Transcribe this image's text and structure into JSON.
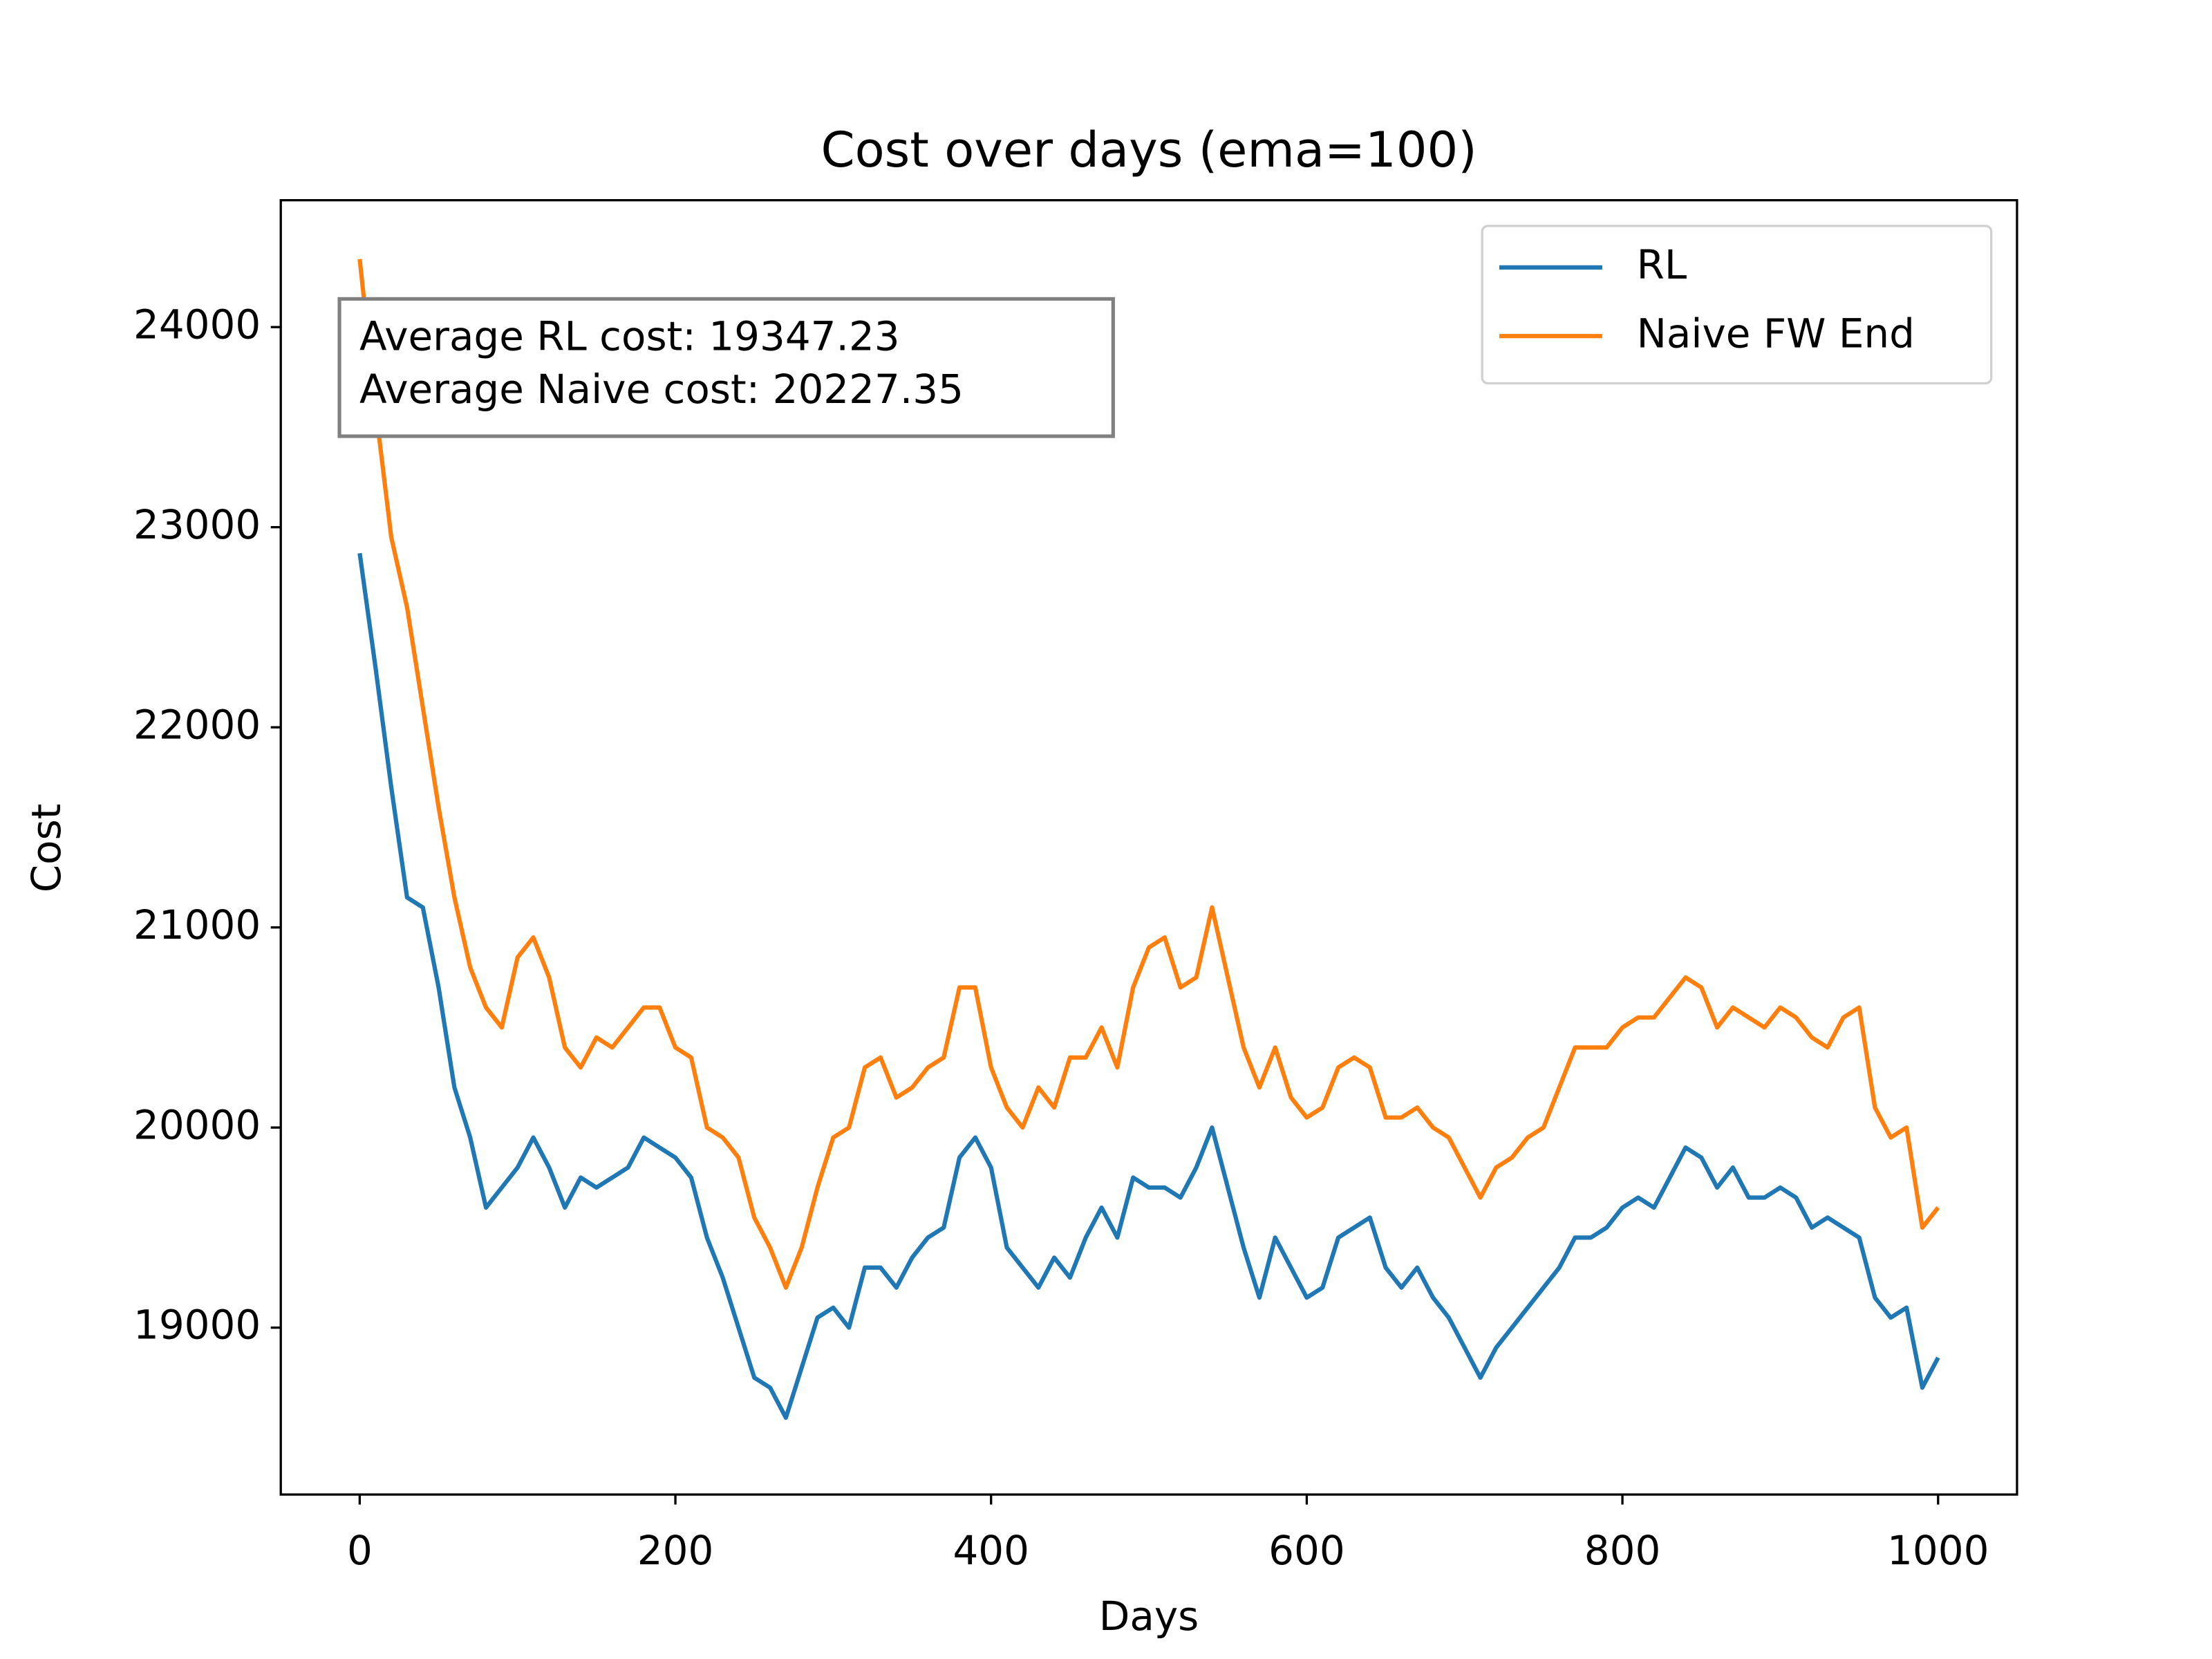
{
  "chart_data": {
    "type": "line",
    "title": "Cost over days (ema=100)",
    "x_label": "Days",
    "y_label": "Cost",
    "annotation": [
      "Average RL cost: 19347.23",
      "Average Naive cost: 20227.35"
    ],
    "legend_position": "upper right",
    "xlim": [
      -50,
      1050
    ],
    "ylim": [
      18166,
      24634
    ],
    "xticks": [
      0,
      200,
      400,
      600,
      800,
      1000
    ],
    "yticks": [
      19000,
      20000,
      21000,
      22000,
      23000,
      24000
    ],
    "x": [
      0,
      10,
      20,
      30,
      40,
      50,
      60,
      70,
      80,
      90,
      100,
      110,
      120,
      130,
      140,
      150,
      160,
      170,
      180,
      190,
      200,
      210,
      220,
      230,
      240,
      250,
      260,
      270,
      280,
      290,
      300,
      310,
      320,
      330,
      340,
      350,
      360,
      370,
      380,
      390,
      400,
      410,
      420,
      430,
      440,
      450,
      460,
      470,
      480,
      490,
      500,
      510,
      520,
      530,
      540,
      550,
      560,
      570,
      580,
      590,
      600,
      610,
      620,
      630,
      640,
      650,
      660,
      670,
      680,
      690,
      700,
      710,
      720,
      730,
      740,
      750,
      760,
      770,
      780,
      790,
      800,
      810,
      820,
      830,
      840,
      850,
      860,
      870,
      880,
      890,
      900,
      910,
      920,
      930,
      940,
      950,
      960,
      970,
      980,
      990,
      1000
    ],
    "series": [
      {
        "name": "RL",
        "color": "#1f77b4",
        "values": [
          22870,
          22300,
          21700,
          21150,
          21100,
          20700,
          20200,
          19950,
          19600,
          19700,
          19800,
          19950,
          19800,
          19600,
          19750,
          19700,
          19750,
          19800,
          19950,
          19900,
          19850,
          19750,
          19450,
          19250,
          19000,
          18750,
          18700,
          18550,
          18800,
          19050,
          19100,
          19000,
          19300,
          19300,
          19200,
          19350,
          19450,
          19500,
          19850,
          19950,
          19800,
          19400,
          19300,
          19200,
          19350,
          19250,
          19450,
          19600,
          19450,
          19750,
          19700,
          19700,
          19650,
          19800,
          20000,
          19700,
          19400,
          19150,
          19450,
          19300,
          19150,
          19200,
          19450,
          19500,
          19550,
          19300,
          19200,
          19300,
          19150,
          19050,
          18900,
          18750,
          18900,
          19000,
          19100,
          19200,
          19300,
          19450,
          19450,
          19500,
          19600,
          19650,
          19600,
          19750,
          19900,
          19850,
          19700,
          19800,
          19650,
          19650,
          19700,
          19650,
          19500,
          19550,
          19500,
          19450,
          19150,
          19050,
          19100,
          18700,
          18850
        ]
      },
      {
        "name": "Naive FW End",
        "color": "#ff7f0e",
        "values": [
          24340,
          23600,
          22950,
          22600,
          22100,
          21600,
          21150,
          20800,
          20600,
          20500,
          20850,
          20950,
          20750,
          20400,
          20300,
          20450,
          20400,
          20500,
          20600,
          20600,
          20400,
          20350,
          20000,
          19950,
          19850,
          19550,
          19400,
          19200,
          19400,
          19700,
          19950,
          20000,
          20300,
          20350,
          20150,
          20200,
          20300,
          20350,
          20700,
          20700,
          20300,
          20100,
          20000,
          20200,
          20100,
          20350,
          20350,
          20500,
          20300,
          20700,
          20900,
          20950,
          20700,
          20750,
          21100,
          20750,
          20400,
          20200,
          20400,
          20150,
          20050,
          20100,
          20300,
          20350,
          20300,
          20050,
          20050,
          20100,
          20000,
          19950,
          19800,
          19650,
          19800,
          19850,
          19950,
          20000,
          20200,
          20400,
          20400,
          20400,
          20500,
          20550,
          20550,
          20650,
          20750,
          20700,
          20500,
          20600,
          20550,
          20500,
          20600,
          20550,
          20450,
          20400,
          20550,
          20600,
          20100,
          19950,
          20000,
          19500,
          19600
        ]
      }
    ]
  }
}
